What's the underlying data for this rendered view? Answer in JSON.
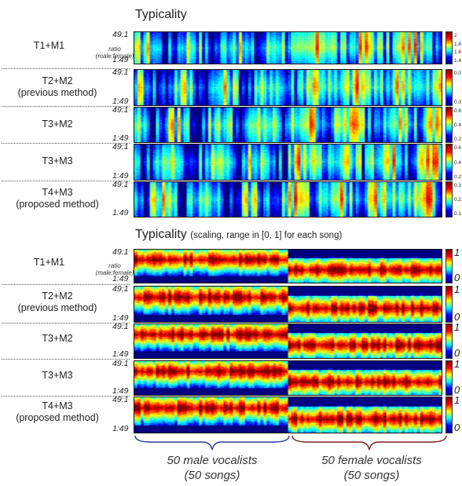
{
  "chart_data": [
    {
      "type": "heatmap",
      "title": "Typicality",
      "subtitle": "",
      "ylabel": "ratio (male:female)",
      "y_ticks": [
        "49:1",
        "1:49"
      ],
      "rows": [
        {
          "label": "T1+M1",
          "sublabel": "",
          "colorbar_ticks": [
            "2",
            "1.8",
            "1.6",
            "1.4"
          ]
        },
        {
          "label": "T2+M2",
          "sublabel": "(previous method)",
          "colorbar_ticks": [
            "0.0",
            "0.0"
          ]
        },
        {
          "label": "T3+M2",
          "sublabel": "",
          "colorbar_ticks": [
            "0.6",
            "0.4",
            "0.2"
          ]
        },
        {
          "label": "T3+M3",
          "sublabel": "",
          "colorbar_ticks": [
            "0.6",
            "0.4",
            "0.2"
          ]
        },
        {
          "label": "T4+M3",
          "sublabel": "(proposed method)",
          "colorbar_ticks": [
            "0.3",
            "0.2",
            "0.1"
          ]
        }
      ]
    },
    {
      "type": "heatmap",
      "title": "Typicality",
      "subtitle": "(scaling, range in [0, 1] for each song)",
      "ylabel": "ratio (male:female)",
      "y_ticks": [
        "49:1",
        "1:49"
      ],
      "rows": [
        {
          "label": "T1+M1",
          "sublabel": "",
          "colorbar_ticks": [
            "1",
            "0"
          ]
        },
        {
          "label": "T2+M2",
          "sublabel": "(previous method)",
          "colorbar_ticks": [
            "1",
            "0"
          ]
        },
        {
          "label": "T3+M2",
          "sublabel": "",
          "colorbar_ticks": [
            "1",
            "0"
          ]
        },
        {
          "label": "T3+M3",
          "sublabel": "",
          "colorbar_ticks": [
            "1",
            "0"
          ]
        },
        {
          "label": "T4+M3",
          "sublabel": "(proposed method)",
          "colorbar_ticks": [
            "1",
            "0"
          ]
        }
      ]
    }
  ],
  "ratio_label": {
    "line1": "ratio",
    "line2": "(male:female)"
  },
  "groups": [
    {
      "line1": "50 male vocalists",
      "line2": "(50 songs)",
      "color": "#2b3f8f"
    },
    {
      "line1": "50 female vocalists",
      "line2": "(50 songs)",
      "color": "#7a2020"
    }
  ]
}
